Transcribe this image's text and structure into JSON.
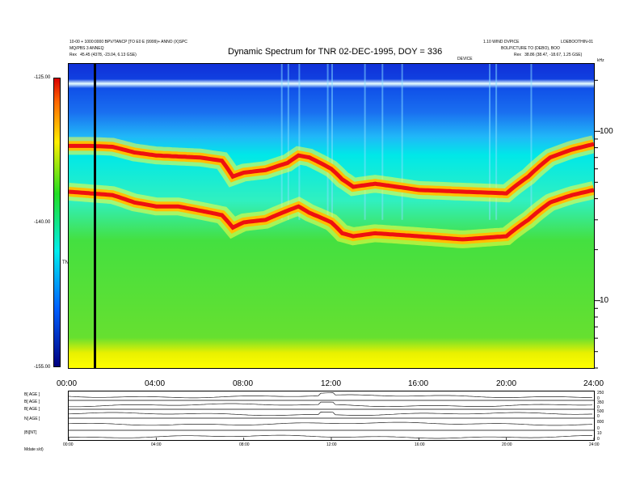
{
  "header": {
    "title": "Dynamic Spectrum for TNR 02-DEC-1995, DOY = 336",
    "left_line1": "10-00 + 1000:0000 BPV/TANCP [TO E0 E (9999)+ ANNO (X)SPC",
    "left_line2": "MQ/PBS 3 ANNEQ",
    "left_line3_label": "Rex",
    "left_line3_value": "45.45 (4378, -23.04, 6.13 GSE)",
    "right_line1": "1.10 WIND DVPICE",
    "right_line1b": "LOEBOOTHIN-01",
    "right_line2": "BOLPICTURE TO (DEBO), BOO",
    "right_line3_label": "Rex",
    "right_line3_value": "38.86 (38.47, -18.67, 1.25 GSE)",
    "right_line4": "DEVICE",
    "right_axis_unit": "kHz"
  },
  "colorbar": {
    "ticks": [
      "-125.00",
      "-140.00",
      "-155.00"
    ],
    "label": "TNR"
  },
  "chart_data": [
    {
      "type": "heatmap",
      "title": "Dynamic Spectrum for TNR 02-DEC-1995, DOY = 336",
      "xlabel": "",
      "ylabel": "",
      "x_ticks": [
        "00:00",
        "04:00",
        "08:00",
        "12:00",
        "16:00",
        "20:00",
        "24:00"
      ],
      "xlim_hours": [
        0,
        24
      ],
      "y_ticks": [
        "100",
        "10"
      ],
      "y_scale": "log",
      "ylim": [
        4,
        250
      ],
      "colorbar_range": [
        -155,
        -125
      ],
      "colorbar_ticks": [
        -125,
        -140,
        -155
      ],
      "colors": [
        "#000080",
        "#0060ff",
        "#00eeee",
        "#22dd22",
        "#ffee00",
        "#ff6600",
        "#d80000"
      ],
      "marker_line_hour": 1.2,
      "upper_band": {
        "name": "",
        "hours": [
          0,
          1,
          2,
          3,
          4,
          5,
          6,
          7,
          7.5,
          8,
          9,
          10,
          10.5,
          11,
          12,
          12.5,
          13,
          14,
          16,
          18,
          20,
          21,
          22,
          23,
          24
        ],
        "freq_khz": [
          82,
          82,
          81,
          75,
          72,
          71,
          70,
          67,
          54,
          57,
          59,
          65,
          72,
          70,
          60,
          52,
          47,
          49,
          45,
          44,
          43,
          54,
          70,
          78,
          84
        ]
      },
      "lower_band": {
        "name": "",
        "hours": [
          0,
          1,
          2,
          3,
          4,
          5,
          6,
          7,
          7.5,
          8,
          9,
          10,
          10.5,
          11,
          12,
          12.5,
          13,
          14,
          16,
          18,
          20,
          21,
          22,
          23,
          24
        ],
        "freq_khz": [
          44,
          43,
          42,
          38,
          36,
          36,
          34,
          32,
          27,
          29,
          30,
          34,
          36,
          33,
          29,
          25,
          24,
          25,
          24,
          23,
          24,
          30,
          38,
          42,
          45
        ]
      }
    },
    {
      "type": "line",
      "xlabel": "",
      "x_ticks": [
        "00:00",
        "04:00",
        "08:00",
        "12:00",
        "16:00",
        "20:00",
        "24:00"
      ],
      "series": [
        {
          "name": "B[ AGE ]",
          "right_ticks": [
            "250",
            "0"
          ]
        },
        {
          "name": "B[ AGE ]",
          "right_ticks": [
            "350",
            "0"
          ]
        },
        {
          "name": "B[ AGE ]",
          "right_ticks": [
            "500",
            "0"
          ]
        },
        {
          "name": "N[ AGE ]",
          "right_ticks": [
            "800",
            "0"
          ]
        },
        {
          "name": "|B|[NT]",
          "right_ticks": [
            "10",
            "0"
          ]
        }
      ],
      "footer_label": "Mdate  s/d)"
    }
  ]
}
